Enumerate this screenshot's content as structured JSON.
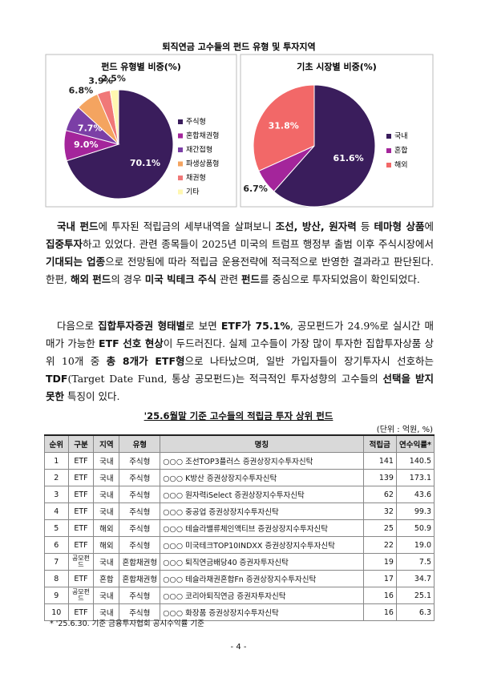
{
  "figure_title": "퇴직연금 고수들의 펀드 유형 및 투자지역",
  "chart_data": [
    {
      "type": "pie",
      "title": "펀드 유형별 비중(%)",
      "categories": [
        "주식형",
        "혼합채권형",
        "재간접형",
        "파생상품형",
        "채권형",
        "기타"
      ],
      "values": [
        70.1,
        9.0,
        7.7,
        6.8,
        3.9,
        2.5
      ],
      "value_labels": [
        "70.1%",
        "9.0%",
        "7.7%",
        "6.8%",
        "3.9%",
        "2.5%"
      ],
      "colors": [
        "#3a1d5c",
        "#a4259b",
        "#7b3fa6",
        "#f4a460",
        "#f07878",
        "#fff7b0"
      ]
    },
    {
      "type": "pie",
      "title": "기초 시장별 비중(%)",
      "categories": [
        "국내",
        "혼합",
        "해외"
      ],
      "values": [
        61.6,
        6.7,
        31.8
      ],
      "value_labels": [
        "61.6%",
        "6.7%",
        "31.8%"
      ],
      "colors": [
        "#3a1d5c",
        "#a4259b",
        "#f26868"
      ]
    }
  ],
  "paragraphs": [
    {
      "runs": [
        {
          "text": "국내 펀드",
          "bold": true
        },
        {
          "text": "에 투자된 적립금의 세부내역을 살펴보니 ",
          "bold": false
        },
        {
          "text": "조선, 방산, 원자력",
          "bold": true
        },
        {
          "text": " 등 ",
          "bold": false
        },
        {
          "text": "테마형 상품",
          "bold": true
        },
        {
          "text": "에 ",
          "bold": false
        },
        {
          "text": "집중투자",
          "bold": true
        },
        {
          "text": "하고 있었다. 관련 종목들이 2025년 미국의 트럼프 행정부 출범 이후 주식시장에서 ",
          "bold": false
        },
        {
          "text": "기대되는 업종",
          "bold": true
        },
        {
          "text": "으로 전망됨에 따라 적립금 운용전략에 적극적으로 반영한 결과라고 판단된다. 한편, ",
          "bold": false
        },
        {
          "text": "해외 펀드",
          "bold": true
        },
        {
          "text": "의 경우 ",
          "bold": false
        },
        {
          "text": "미국 빅테크 주식",
          "bold": true
        },
        {
          "text": " 관련 ",
          "bold": false
        },
        {
          "text": "펀드",
          "bold": true
        },
        {
          "text": "를 중심으로 투자되었음이 확인되었다.",
          "bold": false
        }
      ]
    },
    {
      "runs": [
        {
          "text": "다음으로 ",
          "bold": false
        },
        {
          "text": "집합투자증권 형태별",
          "bold": true
        },
        {
          "text": "로 보면 ",
          "bold": false
        },
        {
          "text": "ETF가 75.1%",
          "bold": true
        },
        {
          "text": ", 공모펀드가 24.9%로 실시간 매매가 가능한 ",
          "bold": false
        },
        {
          "text": "ETF 선호 현상",
          "bold": true
        },
        {
          "text": "이 두드러진다. 실제 고수들이 가장 많이 투자한 집합투자상품 상위 10개 중 ",
          "bold": false
        },
        {
          "text": "총 8개가 ETF형",
          "bold": true
        },
        {
          "text": "으로 나타났으며, 일반 가입자들이 장기투자시 선호하는 ",
          "bold": false
        },
        {
          "text": "TDF",
          "bold": true
        },
        {
          "text": "(Target Date Fund, 통상 공모펀드)는 적극적인 투자성향의 고수들의 ",
          "bold": false
        },
        {
          "text": "선택을 받지 못한",
          "bold": true
        },
        {
          "text": " 특징이 있다.",
          "bold": false
        }
      ]
    }
  ],
  "table": {
    "title": "'25.6월말 기준 고수들의 적립금 투자 상위 펀드",
    "unit": "(단위 : 억원, %)",
    "header": [
      "순위",
      "구분",
      "지역",
      "유형",
      "명칭",
      "적립금",
      "연수익률*"
    ],
    "rows": [
      [
        "1",
        "ETF",
        "국내",
        "주식형",
        "○○○ 조선TOP3플러스 증권상장지수투자신탁",
        "141",
        "140.5"
      ],
      [
        "2",
        "ETF",
        "국내",
        "주식형",
        "○○○ K방산 증권상장지수투자신탁",
        "139",
        "173.1"
      ],
      [
        "3",
        "ETF",
        "국내",
        "주식형",
        "○○○ 원자력iSelect 증권상장지수투자신탁",
        "62",
        "43.6"
      ],
      [
        "4",
        "ETF",
        "국내",
        "주식형",
        "○○○ 중공업 증권상장지수투자신탁",
        "32",
        "99.3"
      ],
      [
        "5",
        "ETF",
        "해외",
        "주식형",
        "○○○ 테슬라밸류체인액티브 증권상장지수투자신탁",
        "25",
        "50.9"
      ],
      [
        "6",
        "ETF",
        "해외",
        "주식형",
        "○○○ 미국테크TOP10INDXX 증권상장지수투자신탁",
        "22",
        "19.0"
      ],
      [
        "7",
        "공모펀드",
        "국내",
        "혼합채권형",
        "○○○ 퇴직연금배당40 증권자투자신탁",
        "19",
        "7.5"
      ],
      [
        "8",
        "ETF",
        "혼합",
        "혼합채권형",
        "○○○ 테슬라채권혼합Fn 증권상장지수투자신탁",
        "17",
        "34.7"
      ],
      [
        "9",
        "공모펀드",
        "국내",
        "주식형",
        "○○○ 코리아퇴직연금 증권자투자신탁",
        "16",
        "25.1"
      ],
      [
        "10",
        "ETF",
        "국내",
        "주식형",
        "○○○ 화장품 증권상장지수투자신탁",
        "16",
        "6.3"
      ]
    ]
  },
  "footnote": "* '25.6.30. 기준 금융투자협회 공시수익률 기준",
  "page_number": "- 4 -"
}
